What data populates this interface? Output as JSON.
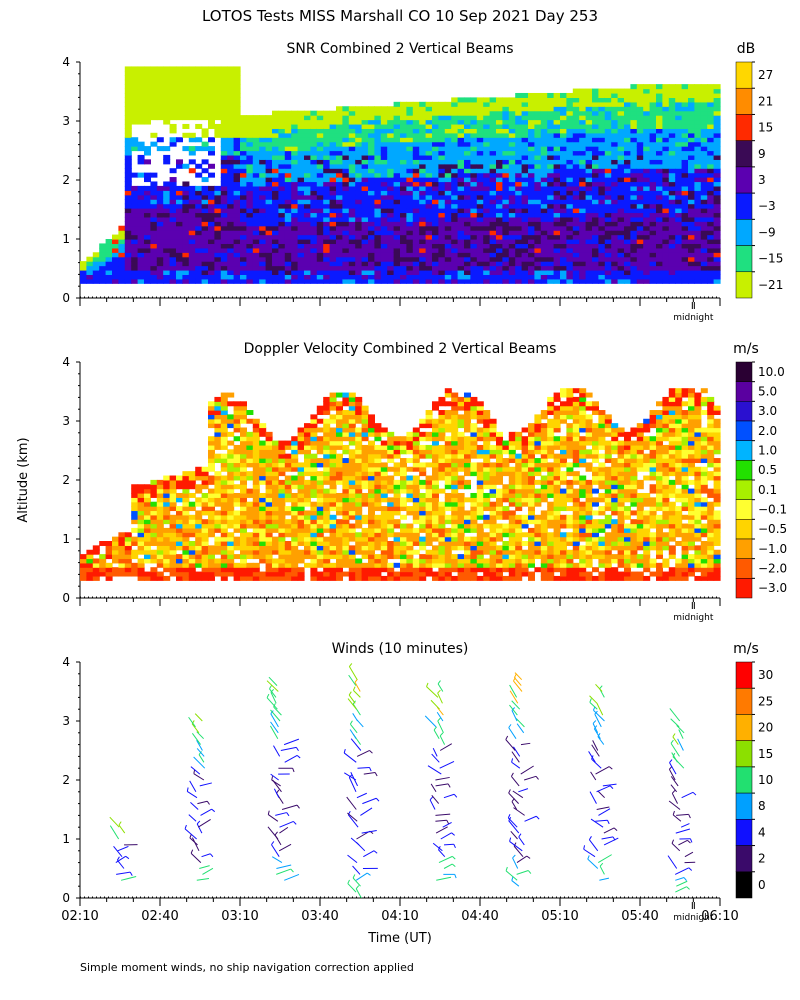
{
  "figure": {
    "title": "LOTOS Tests MISS Marshall CO  10 Sep 2021 Day 253",
    "yaxis_label": "Altitude (km)",
    "xaxis_label": "Time (UT)",
    "footnote": "Simple moment winds, no ship navigation correction applied",
    "midnight_label": "midnight"
  },
  "chart_data": [
    {
      "type": "heatmap",
      "title": "SNR Combined 2 Vertical Beams",
      "ylim": [
        0,
        4
      ],
      "yticks": [
        "0",
        "1",
        "2",
        "3",
        "4"
      ],
      "colorbar": {
        "unit": "dB",
        "labels": [
          "27",
          "21",
          "15",
          "9",
          "3",
          "−3",
          "−9",
          "−15",
          "−21"
        ],
        "colors": [
          "#ffd700",
          "#ff8c00",
          "#ff2a00",
          "#3a0a55",
          "#5b00b0",
          "#0a1aff",
          "#00a8ff",
          "#1fe080",
          "#c8f000"
        ]
      },
      "description_levels": "low altitudes strong (purple/blue), upper layers weak (cyan/green), top of echo ~3.5 km"
    },
    {
      "type": "heatmap",
      "title": "Doppler Velocity Combined 2 Vertical Beams",
      "ylim": [
        0,
        4
      ],
      "yticks": [
        "0",
        "1",
        "2",
        "3",
        "4"
      ],
      "colorbar": {
        "unit": "m/s",
        "labels": [
          "10.0",
          "5.0",
          "3.0",
          "2.0",
          "1.0",
          "0.5",
          "0.1",
          "−0.1",
          "−0.5",
          "−1.0",
          "−2.0",
          "−3.0"
        ],
        "colors": [
          "#2a0033",
          "#5a00a0",
          "#2a10d0",
          "#0050ff",
          "#00b4ff",
          "#22e000",
          "#a8f000",
          "#ffff30",
          "#ffd400",
          "#ffa000",
          "#ff5a00",
          "#ff1a00"
        ]
      }
    },
    {
      "type": "scatter",
      "title": "Winds (10 minutes)",
      "ylim": [
        0,
        4
      ],
      "yticks": [
        "0",
        "1",
        "2",
        "3",
        "4"
      ],
      "xticks": [
        "02:10",
        "02:40",
        "03:10",
        "03:40",
        "04:10",
        "04:40",
        "05:10",
        "05:40",
        "06:10"
      ],
      "colorbar": {
        "unit": "m/s",
        "labels": [
          "30",
          "25",
          "20",
          "15",
          "10",
          "8",
          "4",
          "2",
          "0"
        ],
        "colors": [
          "#ff0000",
          "#ff7a00",
          "#ffb000",
          "#8ce000",
          "#22e070",
          "#00a0ff",
          "#1010ff",
          "#3a0a6a",
          "#000000"
        ]
      },
      "wind_profiles": [
        {
          "time": "02:25",
          "alt_min": 0.3,
          "alt_max": 1.2
        },
        {
          "time": "02:55",
          "alt_min": 0.3,
          "alt_max": 3.0
        },
        {
          "time": "03:25",
          "alt_min": 0.3,
          "alt_max": 3.6
        },
        {
          "time": "03:55",
          "alt_min": 0.0,
          "alt_max": 3.7
        },
        {
          "time": "04:25",
          "alt_min": 0.3,
          "alt_max": 3.5
        },
        {
          "time": "04:55",
          "alt_min": 0.2,
          "alt_max": 3.7
        },
        {
          "time": "05:25",
          "alt_min": 0.3,
          "alt_max": 3.5
        },
        {
          "time": "05:55",
          "alt_min": 0.1,
          "alt_max": 3.0
        }
      ]
    }
  ]
}
